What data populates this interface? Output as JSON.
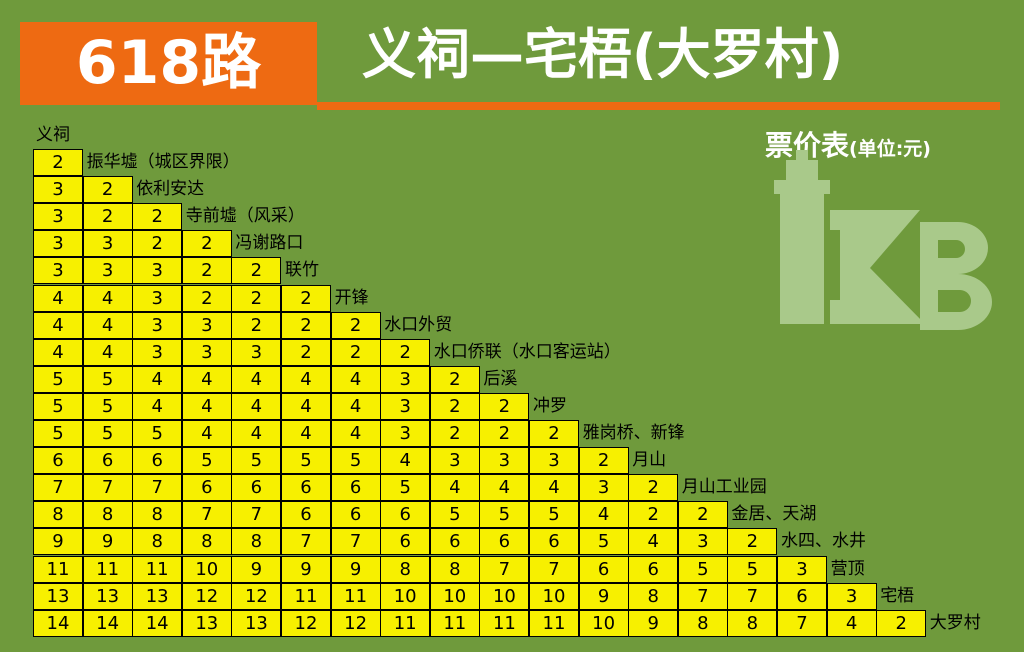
{
  "header": {
    "route_number": "618路",
    "route_name": "义祠—宅梧(大罗村)",
    "table_title": "票价表",
    "unit_label": "(单位:元)"
  },
  "logo": {
    "text": "KB",
    "icon": "lighthouse-icon",
    "color": "#a9c98a"
  },
  "colors": {
    "background": "#6f9a3c",
    "accent": "#ee6a12",
    "cell": "#f7f000"
  },
  "stops": [
    "义祠",
    "振华墟（城区界限）",
    "依利安达",
    "寺前墟（风采）",
    "冯谢路口",
    "联竹",
    "开锋",
    "水口外贸",
    "水口侨联（水口客运站）",
    "后溪",
    "冲罗",
    "雅岗桥、新锋",
    "月山",
    "月山工业园",
    "金居、天湖",
    "水四、水井",
    "营顶",
    "宅梧",
    "大罗村"
  ],
  "fares": [
    [
      "2"
    ],
    [
      "3",
      "2"
    ],
    [
      "3",
      "2",
      "2"
    ],
    [
      "3",
      "3",
      "2",
      "2"
    ],
    [
      "3",
      "3",
      "3",
      "2",
      "2"
    ],
    [
      "4",
      "4",
      "3",
      "2",
      "2",
      "2"
    ],
    [
      "4",
      "4",
      "3",
      "3",
      "2",
      "2",
      "2"
    ],
    [
      "4",
      "4",
      "3",
      "3",
      "3",
      "2",
      "2",
      "2"
    ],
    [
      "5",
      "5",
      "4",
      "4",
      "4",
      "4",
      "4",
      "3",
      "2"
    ],
    [
      "5",
      "5",
      "4",
      "4",
      "4",
      "4",
      "4",
      "3",
      "2",
      "2"
    ],
    [
      "5",
      "5",
      "5",
      "4",
      "4",
      "4",
      "4",
      "3",
      "2",
      "2",
      "2"
    ],
    [
      "6",
      "6",
      "6",
      "5",
      "5",
      "5",
      "5",
      "4",
      "3",
      "3",
      "3",
      "2"
    ],
    [
      "7",
      "7",
      "7",
      "6",
      "6",
      "6",
      "6",
      "5",
      "4",
      "4",
      "4",
      "3",
      "2"
    ],
    [
      "8",
      "8",
      "8",
      "7",
      "7",
      "6",
      "6",
      "6",
      "5",
      "5",
      "5",
      "4",
      "2",
      "2"
    ],
    [
      "9",
      "9",
      "8",
      "8",
      "8",
      "7",
      "7",
      "6",
      "6",
      "6",
      "6",
      "5",
      "4",
      "3",
      "2"
    ],
    [
      "11",
      "11",
      "11",
      "10",
      "9",
      "9",
      "9",
      "8",
      "8",
      "7",
      "7",
      "6",
      "6",
      "5",
      "5",
      "3"
    ],
    [
      "13",
      "13",
      "13",
      "12",
      "12",
      "11",
      "11",
      "10",
      "10",
      "10",
      "10",
      "9",
      "8",
      "7",
      "7",
      "6",
      "3"
    ],
    [
      "14",
      "14",
      "14",
      "13",
      "13",
      "12",
      "12",
      "11",
      "11",
      "11",
      "11",
      "10",
      "9",
      "8",
      "8",
      "7",
      "4",
      "2"
    ]
  ]
}
